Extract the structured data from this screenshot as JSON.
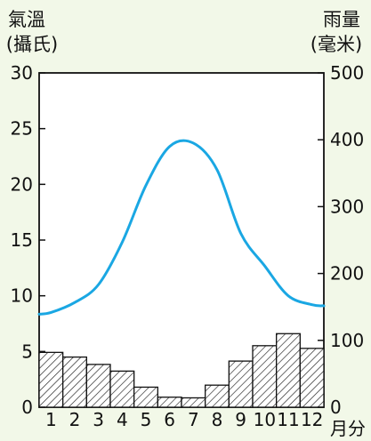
{
  "chart_data": {
    "type": "bar",
    "left_axis_title": "氣溫",
    "left_axis_unit": "(攝氏)",
    "right_axis_title": "雨量",
    "right_axis_unit": "(毫米)",
    "x_axis_unit": "月分",
    "categories": [
      "1",
      "2",
      "3",
      "4",
      "5",
      "6",
      "7",
      "8",
      "9",
      "10",
      "11",
      "12"
    ],
    "left_ylim": [
      0,
      30
    ],
    "left_ticks": [
      0,
      5,
      10,
      15,
      20,
      25,
      30
    ],
    "right_ylim": [
      0,
      500
    ],
    "right_ticks": [
      0,
      100,
      200,
      300,
      400,
      500
    ],
    "series": [
      {
        "kind": "line",
        "axis": "left",
        "color": "#1aa7e3",
        "values": [
          8.5,
          9.4,
          11.0,
          14.8,
          19.9,
          23.4,
          23.7,
          21.3,
          15.6,
          12.7,
          10.0,
          9.2
        ]
      },
      {
        "kind": "bar",
        "axis": "right",
        "pattern": "diagonal-hatch",
        "values": [
          82,
          75,
          64,
          54,
          30,
          15,
          14,
          33,
          69,
          92,
          110,
          88
        ]
      }
    ],
    "grid": false
  }
}
